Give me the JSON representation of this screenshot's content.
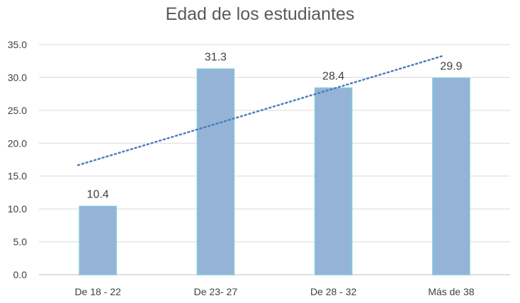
{
  "chart_data": {
    "type": "bar",
    "title": "Edad de los estudiantes",
    "xlabel": "",
    "ylabel": "",
    "categories": [
      "De 18 - 22",
      "De 23- 27",
      "De 28 - 32",
      "Más de 38"
    ],
    "values": [
      10.4,
      31.3,
      28.4,
      29.9
    ],
    "value_labels": [
      "10.4",
      "31.3",
      "28.4",
      "29.9"
    ],
    "ylim": [
      0,
      35
    ],
    "yticks": [
      "0.0",
      "5.0",
      "10.0",
      "15.0",
      "20.0",
      "25.0",
      "30.0",
      "35.0"
    ],
    "ytick_values": [
      0,
      5,
      10,
      15,
      20,
      25,
      30,
      35
    ],
    "grid": true,
    "legend": "none",
    "trendline": {
      "type": "linear",
      "style": "dotted"
    },
    "colors": {
      "bar_fill": "#95b3d7",
      "bar_edge": "#7ec8d8",
      "trendline": "#4a7ebb",
      "grid": "#d9d9d9",
      "axis": "#bfbfbf",
      "text": "#404040",
      "title": "#595959"
    }
  }
}
